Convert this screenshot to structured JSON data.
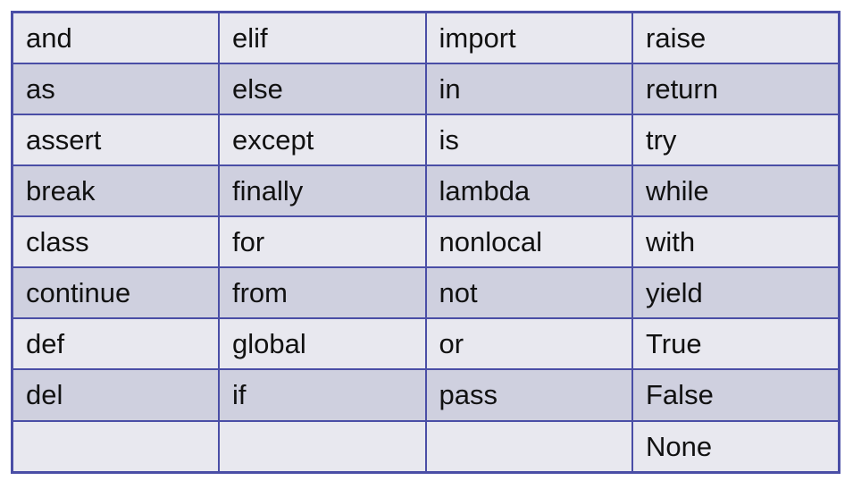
{
  "table": {
    "rows": [
      [
        "and",
        "elif",
        "import",
        "raise"
      ],
      [
        "as",
        "else",
        "in",
        "return"
      ],
      [
        "assert",
        "except",
        "is",
        "try"
      ],
      [
        "break",
        "finally",
        "lambda",
        "while"
      ],
      [
        "class",
        "for",
        "nonlocal",
        "with"
      ],
      [
        "continue",
        "from",
        "not",
        "yield"
      ],
      [
        "def",
        "global",
        "or",
        "True"
      ],
      [
        "del",
        "if",
        "pass",
        "False"
      ],
      [
        "",
        "",
        "",
        "None"
      ]
    ]
  },
  "colors": {
    "border": "#4a4ea6",
    "row_light": "#e8e8ef",
    "row_dark": "#cfd0df",
    "text": "#111111"
  }
}
